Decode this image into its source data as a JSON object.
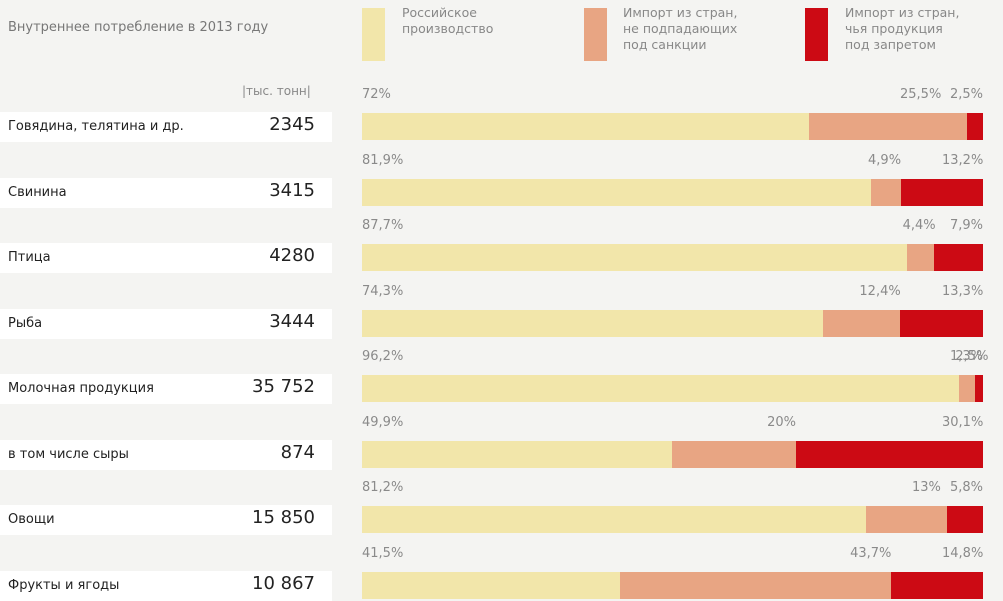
{
  "title": "Внутреннее потребление в 2013 году",
  "unit_label": "|тыс. тонн|",
  "legend": [
    {
      "label": "Российское\nпроизводство",
      "color": "#f2e6aa"
    },
    {
      "label": "Импорт из стран,\nне подпадающих\nпод санкции",
      "color": "#e8a583"
    },
    {
      "label": "Импорт из стран,\nчья продукция\nпод запретом",
      "color": "#cc0a14"
    }
  ],
  "chart_data": {
    "type": "bar",
    "stacked": true,
    "percent": true,
    "title": "Внутреннее потребление в 2013 году",
    "unit": "|тыс. тонн|",
    "categories": [
      "Говядина, телятина и др.",
      "Свинина",
      "Птица",
      "Рыба",
      "Молочная продукция",
      "в том числе сыры",
      "Овощи",
      "Фрукты и ягоды"
    ],
    "consumption": [
      "2345",
      "3415",
      "4280",
      "3444",
      "35 752",
      "874",
      "15 850",
      "10 867"
    ],
    "series": [
      {
        "name": "Российское производство",
        "color": "#f2e6aa",
        "values": [
          72,
          81.9,
          87.7,
          74.3,
          96.2,
          49.9,
          81.2,
          41.5
        ],
        "labels": [
          "72%",
          "81,9%",
          "87,7%",
          "74,3%",
          "96,2%",
          "49,9%",
          "81,2%",
          "41,5%"
        ]
      },
      {
        "name": "Импорт из стран, не подпадающих под санкции",
        "color": "#e8a583",
        "values": [
          25.5,
          4.9,
          4.4,
          12.4,
          2.5,
          20,
          13,
          43.7
        ],
        "labels": [
          "25,5%",
          "4,9%",
          "4,4%",
          "12,4%",
          "2,5%",
          "20%",
          "13%",
          "43,7%"
        ]
      },
      {
        "name": "Импорт из стран, чья продукция под запретом",
        "color": "#cc0a14",
        "values": [
          2.5,
          13.2,
          7.9,
          13.3,
          1.3,
          30.1,
          5.8,
          14.8
        ],
        "labels": [
          "2,5%",
          "13,2%",
          "7,9%",
          "13,3%",
          "1,3%",
          "30,1%",
          "5,8%",
          "14,8%"
        ]
      }
    ],
    "xlim": [
      0,
      100
    ],
    "grid": false,
    "legend_position": "top"
  }
}
